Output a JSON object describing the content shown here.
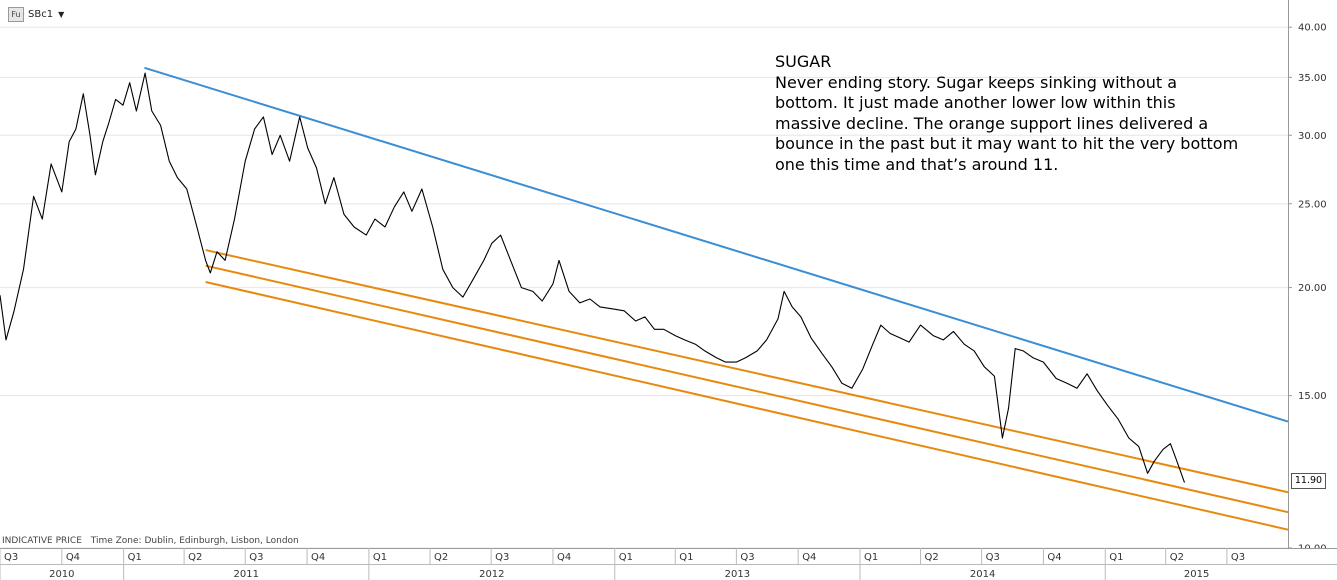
{
  "header": {
    "symbol_badge": "Fu",
    "symbol": "SBc1",
    "dropdown_glyph": "▼"
  },
  "annotation": {
    "title": "SUGAR",
    "body": "Never ending story. Sugar keeps sinking without a bottom. It just made another lower low within this massive decline. The orange support lines delivered a bounce in the past but it may want to hit the very bottom one this time and that’s around 11."
  },
  "info": {
    "price_type": "INDICATIVE PRICE",
    "time_zone": "Time Zone: Dublin, Edinburgh, Lisbon, London"
  },
  "last_price_label": "11.90",
  "colors": {
    "price": "#000000",
    "resistance": "#3b8ed4",
    "support": "#e8890f",
    "grid": "#e6e6e6"
  },
  "chart_data": {
    "type": "line",
    "y_scale": "log",
    "ylim": [
      10,
      43
    ],
    "y_ticks": [
      "10.00",
      "15.00",
      "20.00",
      "25.00",
      "30.00",
      "35.00",
      "40.00"
    ],
    "x_range": [
      "2010-07-01",
      "2015-09-30"
    ],
    "x_quarters": [
      {
        "label": "Q3",
        "start": "2010-07-01"
      },
      {
        "label": "Q4",
        "start": "2010-10-01"
      },
      {
        "label": "Q1",
        "start": "2011-01-01"
      },
      {
        "label": "Q2",
        "start": "2011-04-01"
      },
      {
        "label": "Q3",
        "start": "2011-07-01"
      },
      {
        "label": "Q4",
        "start": "2011-10-01"
      },
      {
        "label": "Q1",
        "start": "2012-01-01"
      },
      {
        "label": "Q2",
        "start": "2012-04-01"
      },
      {
        "label": "Q3",
        "start": "2012-07-01"
      },
      {
        "label": "Q4",
        "start": "2012-10-01"
      },
      {
        "label": "Q1",
        "start": "2013-01-01"
      },
      {
        "label": "Q1",
        "start": "2013-04-01"
      },
      {
        "label": "Q3",
        "start": "2013-07-01"
      },
      {
        "label": "Q4",
        "start": "2013-10-01"
      },
      {
        "label": "Q1",
        "start": "2014-01-01"
      },
      {
        "label": "Q2",
        "start": "2014-04-01"
      },
      {
        "label": "Q3",
        "start": "2014-07-01"
      },
      {
        "label": "Q4",
        "start": "2014-10-01"
      },
      {
        "label": "Q1",
        "start": "2015-01-01"
      },
      {
        "label": "Q2",
        "start": "2015-04-01"
      },
      {
        "label": "Q3",
        "start": "2015-07-01"
      }
    ],
    "x_years": [
      {
        "label": "2010",
        "start": "2010-07-01",
        "end": "2011-01-01"
      },
      {
        "label": "2011",
        "start": "2011-01-01",
        "end": "2012-01-01"
      },
      {
        "label": "2012",
        "start": "2012-01-01",
        "end": "2013-01-01"
      },
      {
        "label": "2013",
        "start": "2013-01-01",
        "end": "2014-01-01"
      },
      {
        "label": "2014",
        "start": "2014-01-01",
        "end": "2015-01-01"
      },
      {
        "label": "2015",
        "start": "2015-01-01",
        "end": "2015-09-30"
      }
    ],
    "series": [
      {
        "values": [
          [
            "2010-07-01",
            19.6
          ],
          [
            "2010-07-10",
            17.4
          ],
          [
            "2010-07-22",
            18.8
          ],
          [
            "2010-08-05",
            21.0
          ],
          [
            "2010-08-20",
            25.5
          ],
          [
            "2010-09-02",
            24.0
          ],
          [
            "2010-09-15",
            27.8
          ],
          [
            "2010-10-01",
            25.8
          ],
          [
            "2010-10-12",
            29.5
          ],
          [
            "2010-10-22",
            30.5
          ],
          [
            "2010-11-02",
            33.5
          ],
          [
            "2010-11-12",
            30.0
          ],
          [
            "2010-11-20",
            27.0
          ],
          [
            "2010-12-01",
            29.5
          ],
          [
            "2010-12-10",
            31.0
          ],
          [
            "2010-12-20",
            33.0
          ],
          [
            "2010-12-31",
            32.5
          ],
          [
            "2011-01-10",
            34.5
          ],
          [
            "2011-01-20",
            32.0
          ],
          [
            "2011-02-02",
            35.4
          ],
          [
            "2011-02-12",
            32.0
          ],
          [
            "2011-02-25",
            30.8
          ],
          [
            "2011-03-10",
            28.0
          ],
          [
            "2011-03-22",
            26.8
          ],
          [
            "2011-04-05",
            26.0
          ],
          [
            "2011-04-20",
            23.5
          ],
          [
            "2011-05-03",
            21.5
          ],
          [
            "2011-05-10",
            20.8
          ],
          [
            "2011-05-20",
            22.0
          ],
          [
            "2011-06-01",
            21.5
          ],
          [
            "2011-06-15",
            24.0
          ],
          [
            "2011-07-01",
            28.0
          ],
          [
            "2011-07-15",
            30.5
          ],
          [
            "2011-07-28",
            31.5
          ],
          [
            "2011-08-10",
            28.5
          ],
          [
            "2011-08-22",
            30.0
          ],
          [
            "2011-09-05",
            28.0
          ],
          [
            "2011-09-20",
            31.5
          ],
          [
            "2011-10-02",
            29.0
          ],
          [
            "2011-10-15",
            27.5
          ],
          [
            "2011-10-28",
            25.0
          ],
          [
            "2011-11-10",
            26.8
          ],
          [
            "2011-11-25",
            24.3
          ],
          [
            "2011-12-10",
            23.5
          ],
          [
            "2011-12-28",
            23.0
          ],
          [
            "2012-01-10",
            24.0
          ],
          [
            "2012-01-25",
            23.5
          ],
          [
            "2012-02-08",
            24.8
          ],
          [
            "2012-02-22",
            25.8
          ],
          [
            "2012-03-05",
            24.5
          ],
          [
            "2012-03-20",
            26.0
          ],
          [
            "2012-04-05",
            23.5
          ],
          [
            "2012-04-20",
            21.0
          ],
          [
            "2012-05-05",
            20.0
          ],
          [
            "2012-05-20",
            19.5
          ],
          [
            "2012-06-05",
            20.5
          ],
          [
            "2012-06-20",
            21.5
          ],
          [
            "2012-07-02",
            22.5
          ],
          [
            "2012-07-15",
            23.0
          ],
          [
            "2012-07-30",
            21.5
          ],
          [
            "2012-08-15",
            20.0
          ],
          [
            "2012-09-01",
            19.8
          ],
          [
            "2012-09-15",
            19.3
          ],
          [
            "2012-10-01",
            20.2
          ],
          [
            "2012-10-10",
            21.5
          ],
          [
            "2012-10-25",
            19.8
          ],
          [
            "2012-11-10",
            19.2
          ],
          [
            "2012-11-25",
            19.4
          ],
          [
            "2012-12-10",
            19.0
          ],
          [
            "2012-12-28",
            18.9
          ],
          [
            "2013-01-15",
            18.8
          ],
          [
            "2013-02-01",
            18.3
          ],
          [
            "2013-02-15",
            18.5
          ],
          [
            "2013-03-01",
            17.9
          ],
          [
            "2013-03-15",
            17.9
          ],
          [
            "2013-04-01",
            17.6
          ],
          [
            "2013-04-15",
            17.4
          ],
          [
            "2013-05-01",
            17.2
          ],
          [
            "2013-05-15",
            16.9
          ],
          [
            "2013-06-01",
            16.6
          ],
          [
            "2013-06-15",
            16.4
          ],
          [
            "2013-07-01",
            16.4
          ],
          [
            "2013-07-15",
            16.6
          ],
          [
            "2013-08-01",
            16.9
          ],
          [
            "2013-08-15",
            17.4
          ],
          [
            "2013-09-01",
            18.4
          ],
          [
            "2013-09-10",
            19.8
          ],
          [
            "2013-09-22",
            19.0
          ],
          [
            "2013-10-05",
            18.5
          ],
          [
            "2013-10-20",
            17.5
          ],
          [
            "2013-11-05",
            16.8
          ],
          [
            "2013-11-20",
            16.2
          ],
          [
            "2013-12-05",
            15.5
          ],
          [
            "2013-12-20",
            15.3
          ],
          [
            "2014-01-05",
            16.1
          ],
          [
            "2014-01-20",
            17.2
          ],
          [
            "2014-02-01",
            18.1
          ],
          [
            "2014-02-15",
            17.7
          ],
          [
            "2014-03-01",
            17.5
          ],
          [
            "2014-03-15",
            17.3
          ],
          [
            "2014-04-01",
            18.1
          ],
          [
            "2014-04-20",
            17.6
          ],
          [
            "2014-05-05",
            17.4
          ],
          [
            "2014-05-20",
            17.8
          ],
          [
            "2014-06-05",
            17.2
          ],
          [
            "2014-06-20",
            16.9
          ],
          [
            "2014-07-05",
            16.2
          ],
          [
            "2014-07-20",
            15.8
          ],
          [
            "2014-08-01",
            13.4
          ],
          [
            "2014-08-10",
            14.5
          ],
          [
            "2014-08-20",
            17.0
          ],
          [
            "2014-09-01",
            16.9
          ],
          [
            "2014-09-15",
            16.6
          ],
          [
            "2014-10-01",
            16.4
          ],
          [
            "2014-10-20",
            15.7
          ],
          [
            "2014-11-05",
            15.5
          ],
          [
            "2014-11-20",
            15.3
          ],
          [
            "2014-12-05",
            15.9
          ],
          [
            "2014-12-20",
            15.2
          ],
          [
            "2015-01-05",
            14.6
          ],
          [
            "2015-01-20",
            14.1
          ],
          [
            "2015-02-05",
            13.4
          ],
          [
            "2015-02-20",
            13.1
          ],
          [
            "2015-03-05",
            12.2
          ],
          [
            "2015-03-15",
            12.6
          ],
          [
            "2015-03-28",
            13.0
          ],
          [
            "2015-04-08",
            13.2
          ],
          [
            "2015-04-16",
            12.7
          ],
          [
            "2015-04-24",
            12.2
          ],
          [
            "2015-04-29",
            11.9
          ]
        ]
      }
    ],
    "trendlines": [
      {
        "kind": "resistance",
        "from": [
          "2011-02-01",
          35.9
        ],
        "to": [
          "2015-09-30",
          14.0
        ]
      },
      {
        "kind": "support",
        "from": [
          "2011-05-03",
          22.1
        ],
        "to": [
          "2015-09-30",
          11.6
        ]
      },
      {
        "kind": "support",
        "from": [
          "2011-05-03",
          21.2
        ],
        "to": [
          "2015-09-30",
          11.0
        ]
      },
      {
        "kind": "support",
        "from": [
          "2011-05-03",
          20.3
        ],
        "to": [
          "2015-09-30",
          10.5
        ]
      }
    ]
  }
}
